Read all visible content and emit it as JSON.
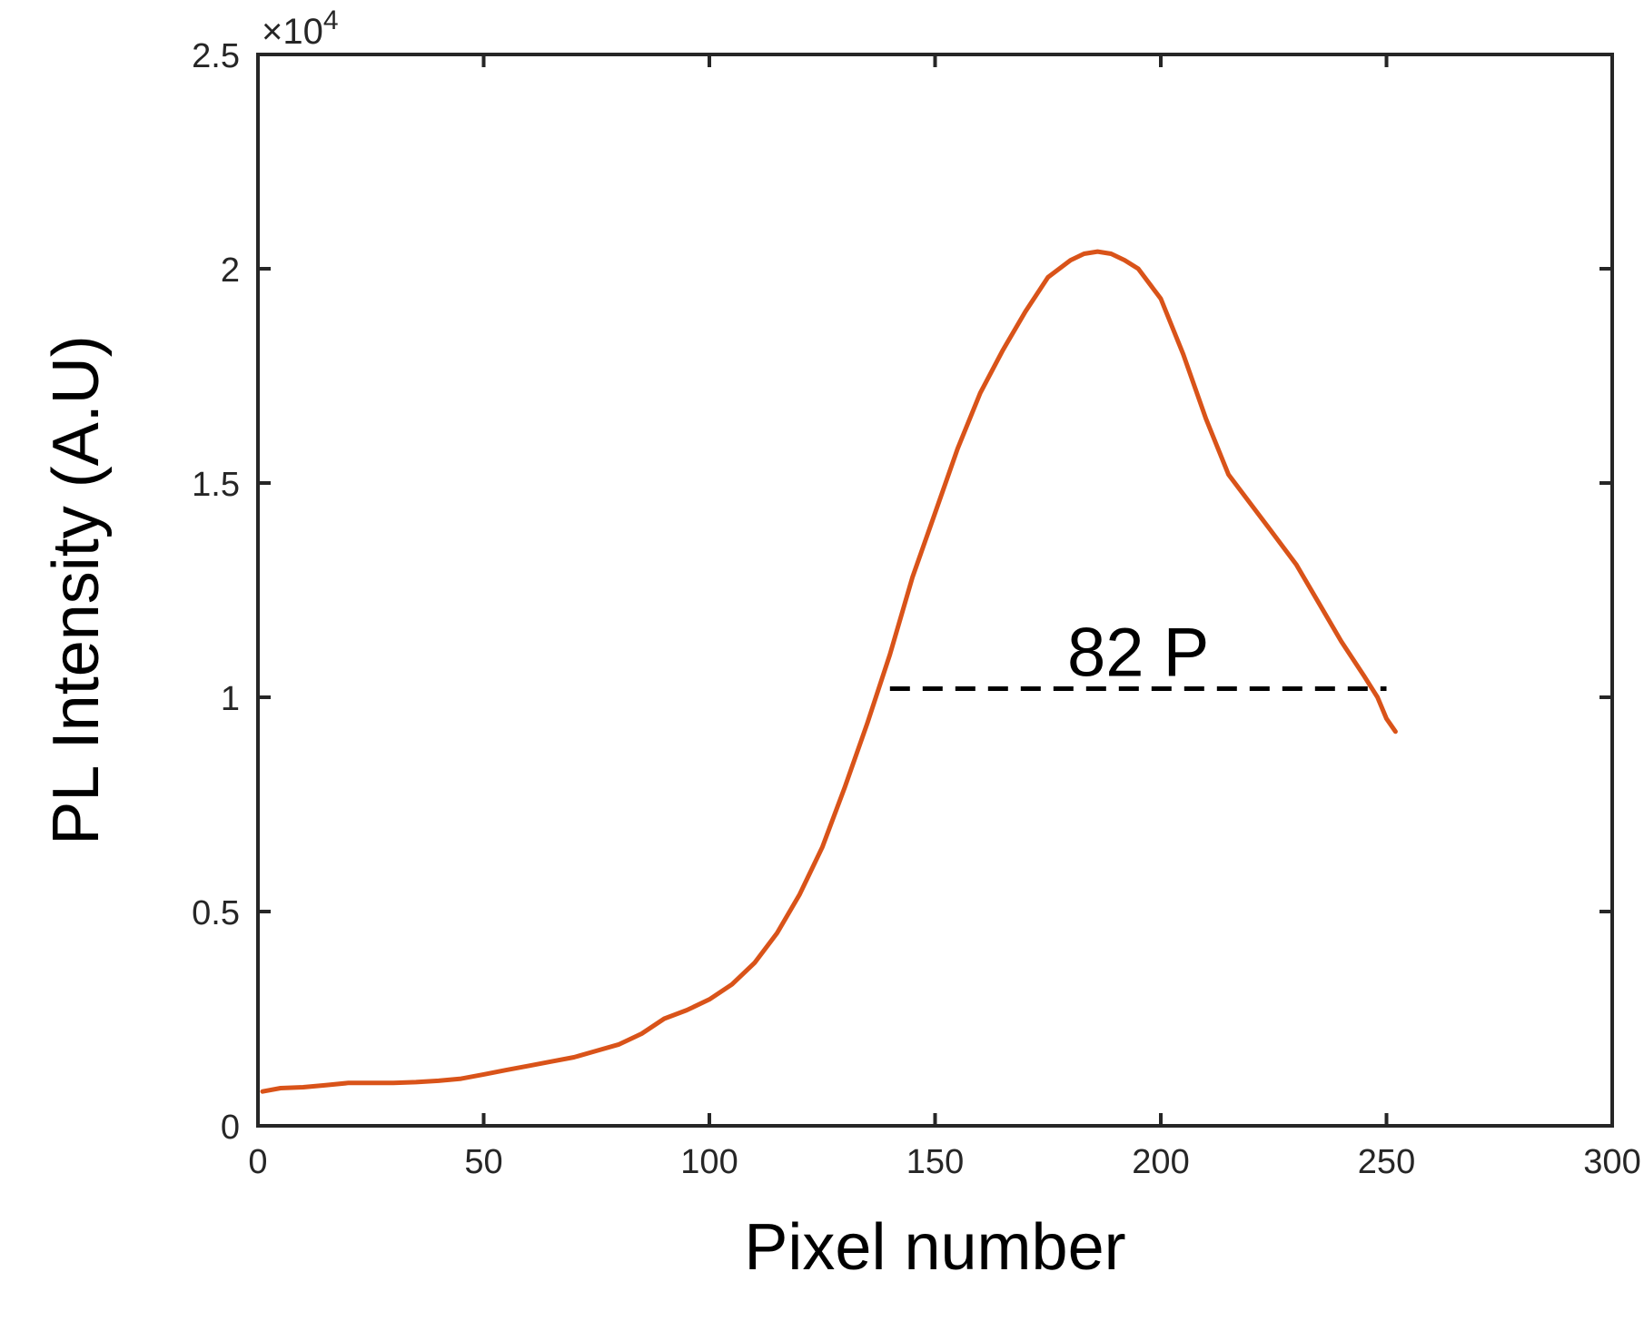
{
  "chart_data": {
    "type": "line",
    "xlabel": "Pixel number",
    "ylabel": "PL Intensity (A.U)",
    "xlim": [
      0,
      300
    ],
    "ylim": [
      0,
      25000
    ],
    "xticks": [
      0,
      50,
      100,
      150,
      200,
      250,
      300
    ],
    "xtick_labels": [
      "0",
      "50",
      "100",
      "150",
      "200",
      "250",
      "300"
    ],
    "yticks": [
      0,
      5000,
      10000,
      15000,
      20000,
      25000
    ],
    "ytick_labels": [
      "0",
      "0.5",
      "1",
      "1.5",
      "2",
      "2.5"
    ],
    "y_multiplier_label": "×10",
    "y_multiplier_exponent": "4",
    "grid": false,
    "series": [
      {
        "color": "#D95319",
        "x": [
          1,
          5,
          10,
          15,
          20,
          25,
          30,
          35,
          40,
          45,
          50,
          55,
          60,
          65,
          70,
          75,
          80,
          85,
          90,
          95,
          100,
          105,
          110,
          115,
          120,
          125,
          130,
          135,
          140,
          145,
          150,
          155,
          160,
          165,
          170,
          175,
          180,
          183,
          186,
          189,
          192,
          195,
          200,
          205,
          210,
          215,
          220,
          225,
          230,
          235,
          240,
          245,
          248,
          250,
          252
        ],
        "y": [
          800,
          880,
          900,
          950,
          1000,
          1000,
          1000,
          1020,
          1050,
          1100,
          1200,
          1300,
          1400,
          1500,
          1600,
          1750,
          1900,
          2150,
          2500,
          2700,
          2950,
          3300,
          3800,
          4500,
          5400,
          6500,
          7900,
          9400,
          11000,
          12800,
          14300,
          15800,
          17100,
          18100,
          19000,
          19800,
          20200,
          20350,
          20400,
          20350,
          20200,
          20000,
          19300,
          18000,
          16500,
          15200,
          14500,
          13800,
          13100,
          12200,
          11300,
          10500,
          10000,
          9500,
          9200
        ]
      }
    ],
    "annotations": [
      {
        "text": "82 P",
        "line_x": [
          140,
          250
        ],
        "line_y": 10200,
        "line_style": "dashed",
        "color": "#000000"
      }
    ]
  }
}
